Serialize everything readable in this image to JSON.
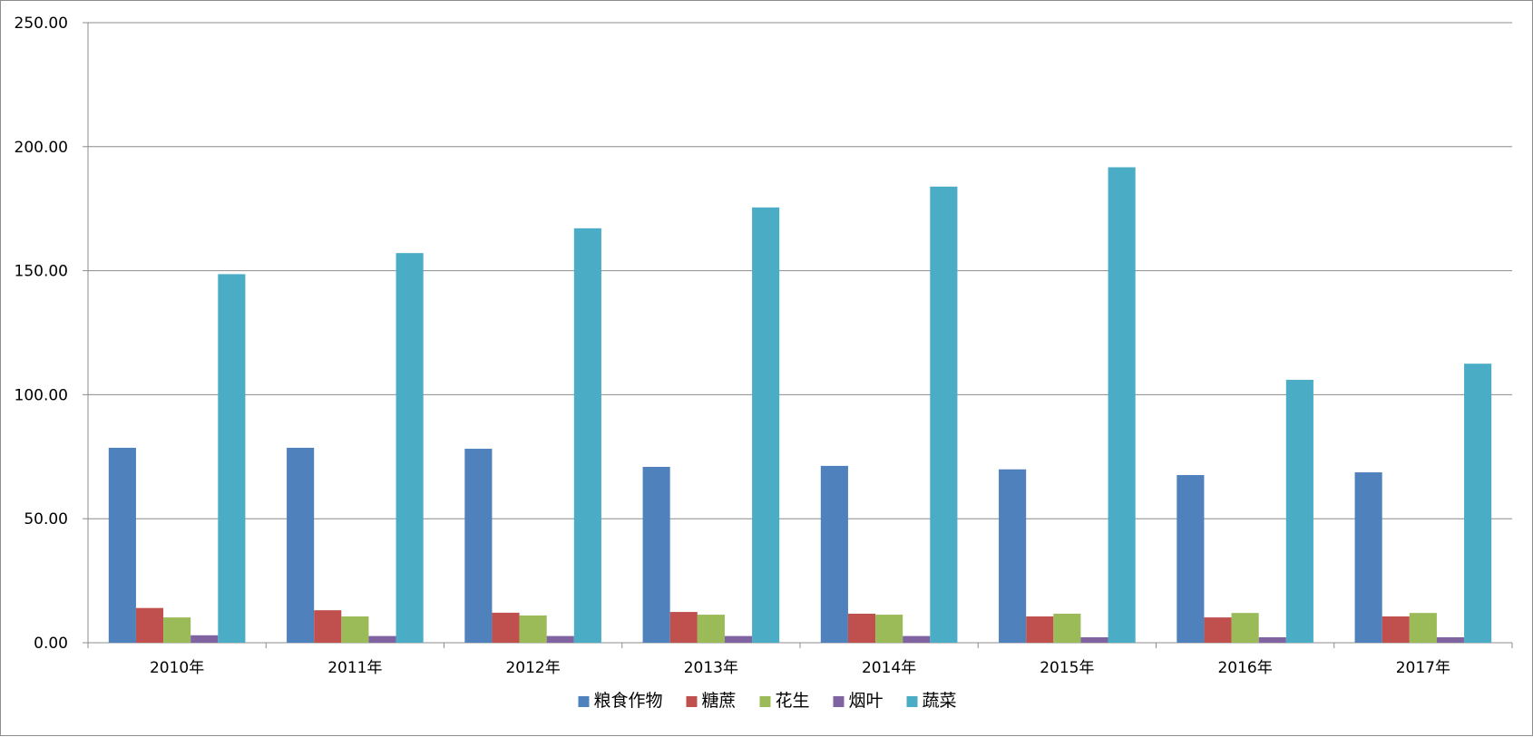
{
  "chart_data": {
    "type": "bar",
    "categories": [
      "2010年",
      "2011年",
      "2012年",
      "2013年",
      "2014年",
      "2015年",
      "2016年",
      "2017年"
    ],
    "series": [
      {
        "name": "粮食作物",
        "color": "#4F81BD",
        "values": [
          78.6,
          78.6,
          78.2,
          70.9,
          71.3,
          69.9,
          67.6,
          68.7
        ]
      },
      {
        "name": "糖蔗",
        "color": "#C0504D",
        "values": [
          14.0,
          13.1,
          12.1,
          12.4,
          11.7,
          10.6,
          10.2,
          10.6
        ]
      },
      {
        "name": "花生",
        "color": "#9BBB59",
        "values": [
          10.2,
          10.6,
          11.0,
          11.3,
          11.3,
          11.7,
          12.0,
          12.0
        ]
      },
      {
        "name": "烟叶",
        "color": "#8064A2",
        "values": [
          3.0,
          2.7,
          2.7,
          2.7,
          2.7,
          2.2,
          2.2,
          2.2
        ]
      },
      {
        "name": "蔬菜",
        "color": "#4BACC6",
        "values": [
          148.6,
          157.1,
          167.1,
          175.5,
          183.9,
          191.7,
          106.0,
          112.5
        ]
      }
    ],
    "ylim": [
      0,
      250
    ],
    "yticks": [
      "0.00",
      "50.00",
      "100.00",
      "150.00",
      "200.00",
      "250.00"
    ],
    "ytick_values": [
      0,
      50,
      100,
      150,
      200,
      250
    ],
    "grid": true,
    "legend_position": "bottom",
    "title": "",
    "xlabel": "",
    "ylabel": ""
  }
}
